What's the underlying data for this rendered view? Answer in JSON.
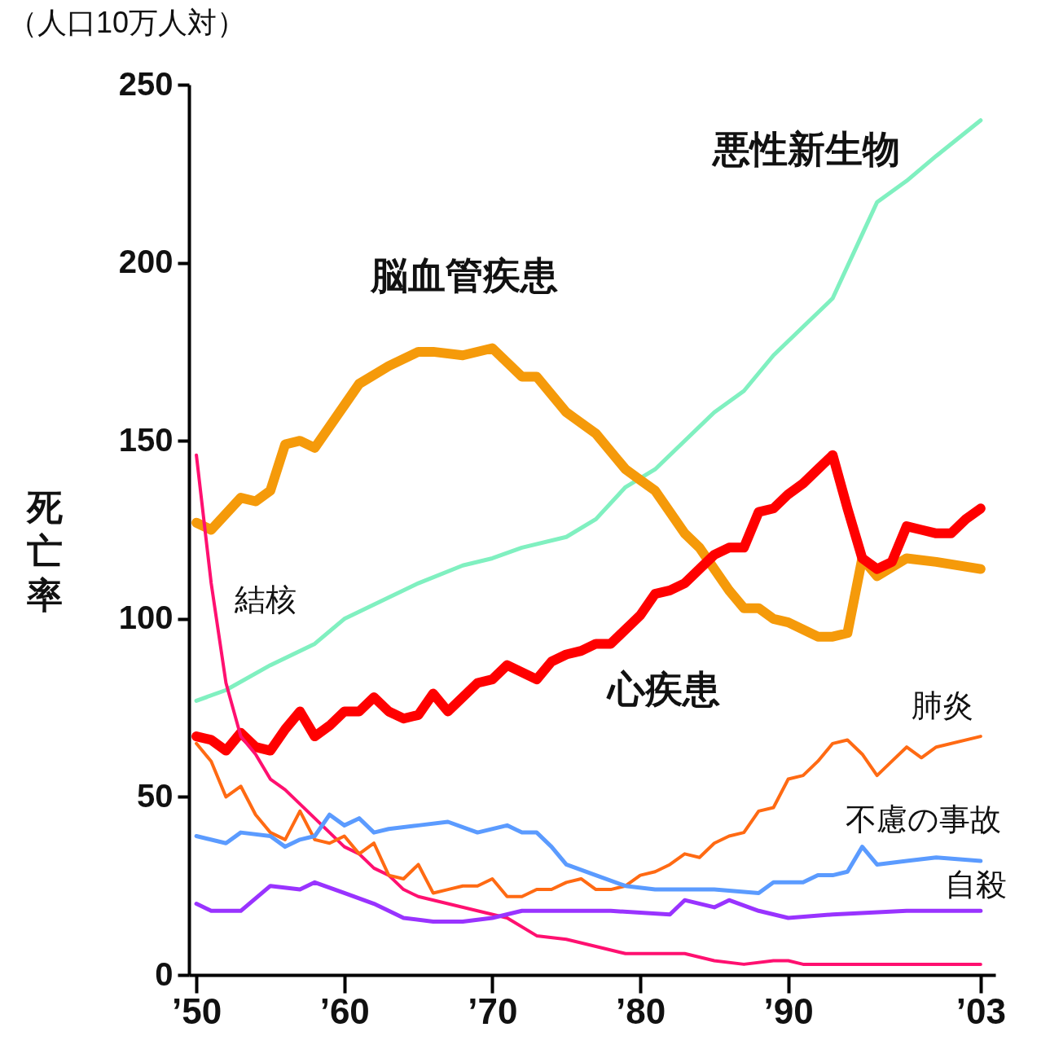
{
  "chart_data": {
    "type": "line",
    "title": "（人口10万人対）",
    "ylabel": "死亡率",
    "xlim": [
      1949.5,
      2004
    ],
    "ylim": [
      0,
      250
    ],
    "xticks": [
      {
        "value": 1950,
        "label": "’50"
      },
      {
        "value": 1960,
        "label": "’60"
      },
      {
        "value": 1970,
        "label": "’70"
      },
      {
        "value": 1980,
        "label": "’80"
      },
      {
        "value": 1990,
        "label": "’90"
      },
      {
        "value": 2003,
        "label": "’03"
      }
    ],
    "yticks": [
      0,
      50,
      100,
      150,
      200,
      250
    ],
    "grid": false,
    "legend": false,
    "marker": "none",
    "line_style": "solid",
    "series": [
      {
        "name": "悪性新生物",
        "color": "#80f0c0",
        "x": [
          1950,
          1952,
          1955,
          1958,
          1960,
          1962,
          1965,
          1968,
          1970,
          1972,
          1975,
          1977,
          1979,
          1981,
          1983,
          1985,
          1987,
          1989,
          1991,
          1993,
          1995,
          1996,
          1998,
          2000,
          2003
        ],
        "values": [
          77,
          80,
          87,
          93,
          100,
          104,
          110,
          115,
          117,
          120,
          123,
          128,
          137,
          142,
          150,
          158,
          164,
          174,
          182,
          190,
          208,
          217,
          223,
          230,
          240
        ]
      },
      {
        "name": "脳血管疾患",
        "color": "#f59a0a",
        "x": [
          1950,
          1951,
          1953,
          1954,
          1955,
          1956,
          1957,
          1958,
          1960,
          1961,
          1963,
          1964,
          1965,
          1966,
          1968,
          1970,
          1971,
          1972,
          1973,
          1975,
          1977,
          1979,
          1980,
          1981,
          1983,
          1984,
          1985,
          1986,
          1987,
          1988,
          1989,
          1990,
          1991,
          1992,
          1993,
          1994,
          1995,
          1996,
          1998,
          2000,
          2003
        ],
        "values": [
          127,
          125,
          134,
          133,
          136,
          149,
          150,
          148,
          160,
          166,
          171,
          173,
          175,
          175,
          174,
          176,
          172,
          168,
          168,
          158,
          152,
          142,
          139,
          136,
          124,
          120,
          114,
          108,
          103,
          103,
          100,
          99,
          97,
          95,
          95,
          96,
          117,
          112,
          117,
          116,
          114
        ]
      },
      {
        "name": "心疾患",
        "color": "#ff0000",
        "x": [
          1950,
          1951,
          1952,
          1953,
          1954,
          1955,
          1956,
          1957,
          1958,
          1959,
          1960,
          1961,
          1962,
          1963,
          1964,
          1965,
          1966,
          1967,
          1968,
          1969,
          1970,
          1971,
          1972,
          1973,
          1974,
          1975,
          1976,
          1977,
          1978,
          1979,
          1980,
          1981,
          1982,
          1983,
          1984,
          1985,
          1986,
          1987,
          1988,
          1989,
          1990,
          1991,
          1992,
          1993,
          1994,
          1995,
          1996,
          1997,
          1998,
          1999,
          2000,
          2001,
          2002,
          2003
        ],
        "values": [
          67,
          66,
          63,
          68,
          64,
          63,
          69,
          74,
          67,
          70,
          74,
          74,
          78,
          74,
          72,
          73,
          79,
          74,
          78,
          82,
          83,
          87,
          85,
          83,
          88,
          90,
          91,
          93,
          93,
          97,
          101,
          107,
          108,
          110,
          114,
          118,
          120,
          120,
          130,
          131,
          135,
          138,
          142,
          146,
          131,
          117,
          114,
          116,
          126,
          125,
          124,
          124,
          128,
          131
        ]
      },
      {
        "name": "結核",
        "color": "#ff1070",
        "x": [
          1950,
          1951,
          1952,
          1953,
          1954,
          1955,
          1956,
          1957,
          1958,
          1959,
          1960,
          1961,
          1962,
          1963,
          1964,
          1965,
          1967,
          1969,
          1971,
          1973,
          1975,
          1977,
          1979,
          1981,
          1983,
          1985,
          1987,
          1989,
          1990,
          1991,
          2003
        ],
        "values": [
          146,
          110,
          82,
          67,
          62,
          55,
          52,
          48,
          44,
          40,
          36,
          34,
          30,
          28,
          24,
          22,
          20,
          18,
          16,
          11,
          10,
          8,
          6,
          6,
          6,
          4,
          3,
          4,
          4,
          3,
          3
        ]
      },
      {
        "name": "肺炎",
        "color": "#ff6a13",
        "x": [
          1950,
          1951,
          1952,
          1953,
          1954,
          1955,
          1956,
          1957,
          1958,
          1959,
          1960,
          1961,
          1962,
          1963,
          1964,
          1965,
          1966,
          1967,
          1968,
          1969,
          1970,
          1971,
          1972,
          1973,
          1974,
          1975,
          1976,
          1977,
          1978,
          1979,
          1980,
          1981,
          1982,
          1983,
          1984,
          1985,
          1986,
          1987,
          1988,
          1989,
          1990,
          1991,
          1992,
          1993,
          1994,
          1995,
          1996,
          1997,
          1998,
          1999,
          2000,
          2003
        ],
        "values": [
          65,
          60,
          50,
          53,
          45,
          40,
          38,
          46,
          38,
          37,
          39,
          34,
          37,
          28,
          27,
          31,
          23,
          24,
          25,
          25,
          27,
          22,
          22,
          24,
          24,
          26,
          27,
          24,
          24,
          25,
          28,
          29,
          31,
          34,
          33,
          37,
          39,
          40,
          46,
          47,
          55,
          56,
          60,
          65,
          66,
          62,
          56,
          60,
          64,
          61,
          64,
          67
        ]
      },
      {
        "name": "不慮の事故",
        "color": "#5b9bff",
        "x": [
          1950,
          1952,
          1953,
          1955,
          1956,
          1957,
          1958,
          1959,
          1960,
          1961,
          1962,
          1963,
          1965,
          1967,
          1969,
          1971,
          1972,
          1973,
          1974,
          1975,
          1977,
          1979,
          1981,
          1985,
          1988,
          1989,
          1991,
          1992,
          1993,
          1994,
          1995,
          1996,
          1998,
          2000,
          2003
        ],
        "values": [
          39,
          37,
          40,
          39,
          36,
          38,
          39,
          45,
          42,
          44,
          40,
          41,
          42,
          43,
          40,
          42,
          40,
          40,
          36,
          31,
          28,
          25,
          24,
          24,
          23,
          26,
          26,
          28,
          28,
          29,
          36,
          31,
          32,
          33,
          32
        ]
      },
      {
        "name": "自殺",
        "color": "#9933ff",
        "x": [
          1950,
          1951,
          1953,
          1955,
          1957,
          1958,
          1960,
          1962,
          1964,
          1966,
          1968,
          1970,
          1972,
          1975,
          1978,
          1982,
          1983,
          1985,
          1986,
          1988,
          1990,
          1993,
          1998,
          2003
        ],
        "values": [
          20,
          18,
          18,
          25,
          24,
          26,
          23,
          20,
          16,
          15,
          15,
          16,
          18,
          18,
          18,
          17,
          21,
          19,
          21,
          18,
          16,
          17,
          18,
          18
        ]
      }
    ]
  }
}
